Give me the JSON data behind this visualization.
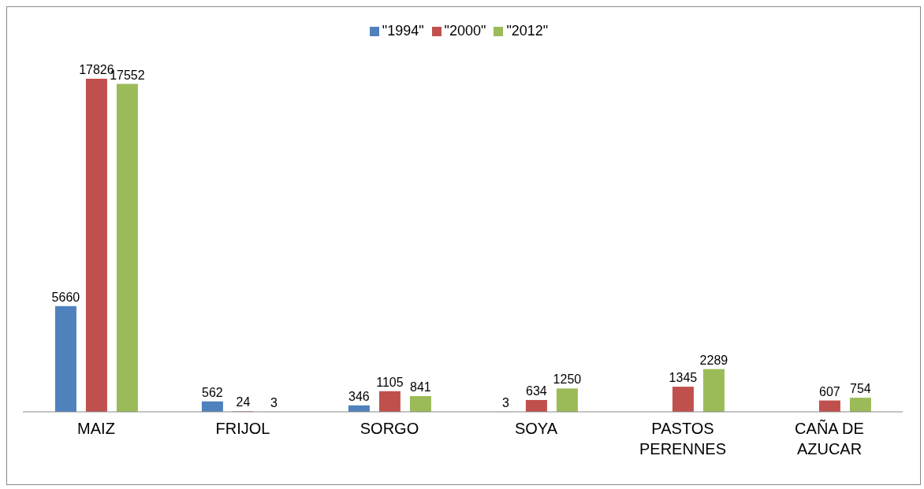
{
  "chart_data": {
    "type": "bar",
    "categories": [
      "MAIZ",
      "FRIJOL",
      "SORGO",
      "SOYA",
      "PASTOS PERENNES",
      "CAÑA DE AZUCAR"
    ],
    "series": [
      {
        "name": "\"1994\"",
        "color": "#4f81bd",
        "values": [
          5660,
          562,
          346,
          3,
          null,
          null
        ]
      },
      {
        "name": "\"2000\"",
        "color": "#c0504d",
        "values": [
          17826,
          24,
          1105,
          634,
          1345,
          607
        ]
      },
      {
        "name": "\"2012\"",
        "color": "#9bbb59",
        "values": [
          17552,
          3,
          841,
          1250,
          2289,
          754
        ]
      }
    ],
    "data_labels": true,
    "legend": "top",
    "grid": false
  }
}
